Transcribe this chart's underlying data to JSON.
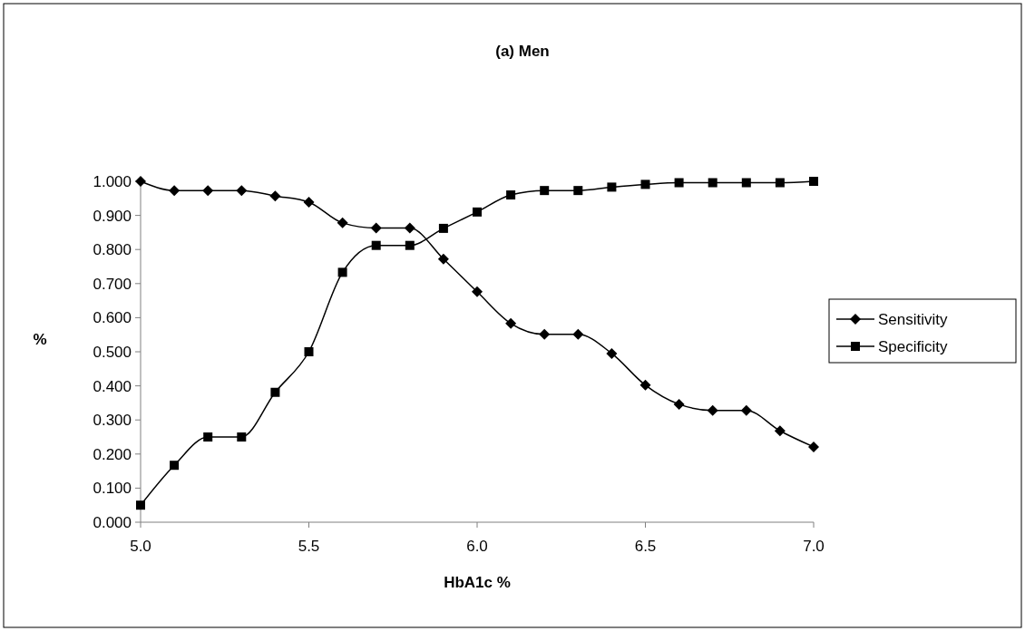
{
  "chart_data": {
    "type": "line",
    "title": "(a) Men",
    "xlabel": "HbA1c %",
    "ylabel": "%",
    "x": [
      5.0,
      5.1,
      5.2,
      5.3,
      5.4,
      5.5,
      5.6,
      5.7,
      5.8,
      5.9,
      6.0,
      6.1,
      6.2,
      6.3,
      6.4,
      6.5,
      6.6,
      6.7,
      6.8,
      6.9,
      7.0
    ],
    "series": [
      {
        "name": "Sensitivity",
        "color": "#000000",
        "marker": "diamond",
        "values": [
          1.0,
          0.973,
          0.973,
          0.973,
          0.957,
          0.939,
          0.878,
          0.863,
          0.863,
          0.772,
          0.676,
          0.583,
          0.551,
          0.551,
          0.495,
          0.402,
          0.346,
          0.328,
          0.328,
          0.268,
          0.221
        ]
      },
      {
        "name": "Specificity",
        "color": "#000000",
        "marker": "square",
        "values": [
          0.05,
          0.167,
          0.25,
          0.25,
          0.381,
          0.5,
          0.733,
          0.812,
          0.812,
          0.862,
          0.91,
          0.96,
          0.973,
          0.973,
          0.983,
          0.991,
          0.996,
          0.996,
          0.996,
          0.996,
          1.0
        ]
      }
    ],
    "xlim": [
      5.0,
      7.0
    ],
    "xticks": [
      {
        "value": 5,
        "label": "5.0"
      },
      5.5,
      {
        "value": 6,
        "label": "6.0"
      },
      6.5,
      {
        "value": 7,
        "label": "7.0"
      }
    ],
    "ylim": [
      0,
      1
    ],
    "yticks": [
      {
        "value": 0,
        "label": "0.000"
      },
      {
        "value": 0.1,
        "label": "0.100"
      },
      {
        "value": 0.2,
        "label": "0.200"
      },
      {
        "value": 0.3,
        "label": "0.300"
      },
      {
        "value": 0.4,
        "label": "0.400"
      },
      {
        "value": 0.5,
        "label": "0.500"
      },
      {
        "value": 0.6,
        "label": "0.600"
      },
      {
        "value": 0.7,
        "label": "0.700"
      },
      {
        "value": 0.8,
        "label": "0.800"
      },
      {
        "value": 0.9,
        "label": "0.900"
      },
      {
        "value": 1,
        "label": "1.000"
      }
    ],
    "grid": false,
    "legend": "right",
    "line_style": "solid"
  }
}
